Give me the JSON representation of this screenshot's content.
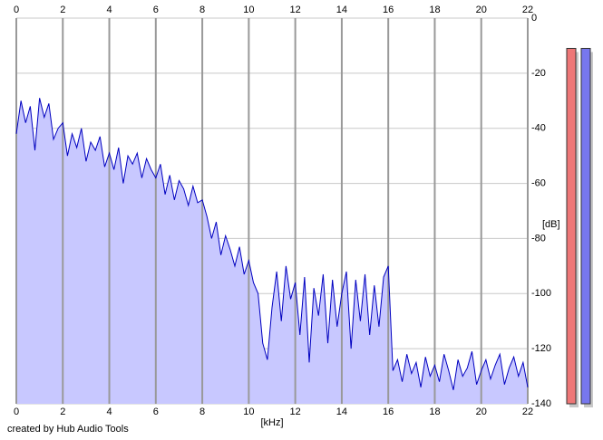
{
  "chart_data": {
    "type": "spectrum",
    "x_label": "[kHz]",
    "y_label": "[dB]",
    "footnote": "created by Hub Audio Tools",
    "xlim": [
      0,
      22
    ],
    "ylim": [
      -140,
      0
    ],
    "xticks": [
      0,
      2,
      4,
      6,
      8,
      10,
      12,
      14,
      16,
      18,
      20,
      22
    ],
    "yticks": [
      0,
      -20,
      -40,
      -60,
      -80,
      -100,
      -120,
      -140
    ],
    "grid": true,
    "line_color": "#0000c0",
    "fill_color": "#c8c8ff",
    "x": [
      0,
      0.2,
      0.4,
      0.6,
      0.8,
      1,
      1.2,
      1.4,
      1.6,
      1.8,
      2,
      2.2,
      2.4,
      2.6,
      2.8,
      3,
      3.2,
      3.4,
      3.6,
      3.8,
      4,
      4.2,
      4.4,
      4.6,
      4.8,
      5,
      5.2,
      5.4,
      5.6,
      5.8,
      6,
      6.2,
      6.4,
      6.6,
      6.8,
      7,
      7.2,
      7.4,
      7.6,
      7.8,
      8,
      8.2,
      8.4,
      8.6,
      8.8,
      9,
      9.2,
      9.4,
      9.6,
      9.8,
      10,
      10.2,
      10.4,
      10.6,
      10.8,
      11,
      11.2,
      11.4,
      11.6,
      11.8,
      12,
      12.2,
      12.4,
      12.6,
      12.8,
      13,
      13.2,
      13.4,
      13.6,
      13.8,
      14,
      14.2,
      14.4,
      14.6,
      14.8,
      15,
      15.2,
      15.4,
      15.6,
      15.8,
      16,
      16.2,
      16.4,
      16.6,
      16.8,
      17,
      17.2,
      17.4,
      17.6,
      17.8,
      18,
      18.2,
      18.4,
      18.6,
      18.8,
      19,
      19.2,
      19.4,
      19.6,
      19.8,
      20,
      20.2,
      20.4,
      20.6,
      20.8,
      21,
      21.2,
      21.4,
      21.6,
      21.8,
      22
    ],
    "values": [
      -42,
      -30,
      -38,
      -32,
      -48,
      -29,
      -36,
      -31,
      -44,
      -40,
      -38,
      -50,
      -42,
      -47,
      -40,
      -52,
      -45,
      -48,
      -43,
      -54,
      -49,
      -55,
      -47,
      -60,
      -50,
      -53,
      -49,
      -58,
      -51,
      -55,
      -58,
      -53,
      -64,
      -57,
      -66,
      -59,
      -62,
      -68,
      -61,
      -67,
      -66,
      -72,
      -80,
      -74,
      -86,
      -79,
      -84,
      -90,
      -83,
      -93,
      -88,
      -96,
      -100,
      -118,
      -124,
      -105,
      -92,
      -110,
      -90,
      -102,
      -96,
      -115,
      -94,
      -125,
      -98,
      -108,
      -93,
      -118,
      -95,
      -112,
      -100,
      -92,
      -120,
      -95,
      -110,
      -93,
      -115,
      -97,
      -112,
      -94,
      -90,
      -128,
      -124,
      -132,
      -122,
      -129,
      -125,
      -134,
      -123,
      -130,
      -126,
      -132,
      -122,
      -128,
      -135,
      -124,
      -130,
      -127,
      -121,
      -133,
      -128,
      -124,
      -131,
      -126,
      -122,
      -133,
      -127,
      -123,
      -130,
      -125,
      -134
    ],
    "level_meters": [
      {
        "color": "#ee7777",
        "value": -11
      },
      {
        "color": "#7777ee",
        "value": -11
      }
    ]
  }
}
